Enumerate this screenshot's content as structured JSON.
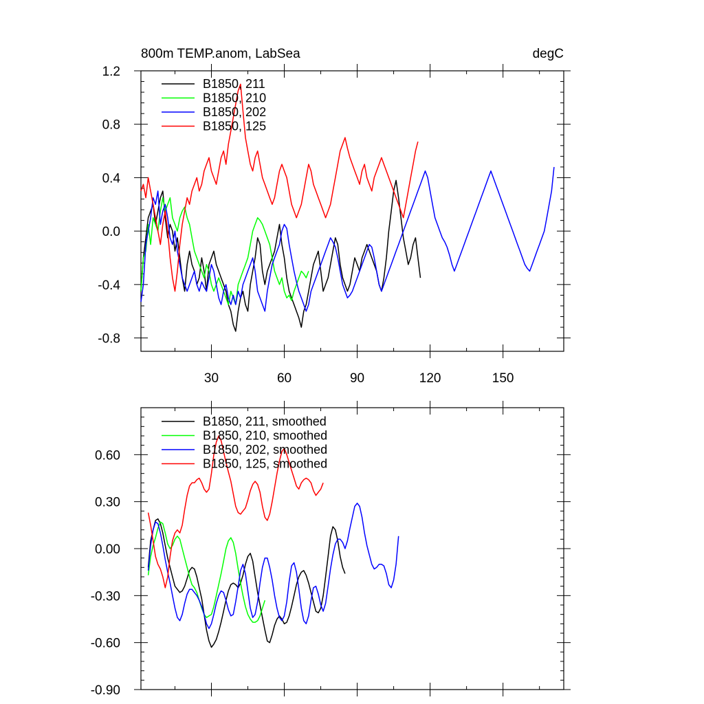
{
  "chart_data": [
    {
      "type": "line",
      "title": "800m TEMP.anom, LabSea",
      "units": "degC",
      "xlim": [
        1,
        175
      ],
      "ylim": [
        -0.9,
        1.2
      ],
      "xticks": [
        30,
        60,
        90,
        120,
        150
      ],
      "xtick_labels": [
        "30",
        "60",
        "90",
        "120",
        "150"
      ],
      "yticks": [
        -0.8,
        -0.4,
        0.0,
        0.4,
        0.8,
        1.2
      ],
      "ytick_labels": [
        "-0.8",
        "-0.4",
        "0.0",
        "0.4",
        "0.8",
        "1.2"
      ],
      "series": [
        {
          "name": "B1850, 211",
          "color": "#000000",
          "x_start": 1,
          "values": [
            -0.45,
            -0.2,
            -0.05,
            0.1,
            0.15,
            0.2,
            0.05,
            0.15,
            0.25,
            0.3,
            0.1,
            -0.05,
            0.05,
            0.0,
            -0.15,
            -0.05,
            -0.2,
            -0.35,
            -0.45,
            -0.25,
            -0.15,
            -0.25,
            -0.3,
            -0.4,
            -0.35,
            -0.2,
            -0.3,
            -0.45,
            -0.25,
            -0.2,
            -0.15,
            -0.25,
            -0.3,
            -0.35,
            -0.4,
            -0.45,
            -0.55,
            -0.6,
            -0.7,
            -0.75,
            -0.6,
            -0.5,
            -0.45,
            -0.55,
            -0.6,
            -0.4,
            -0.3,
            -0.2,
            -0.05,
            -0.1,
            -0.3,
            -0.4,
            -0.3,
            -0.25,
            -0.2,
            -0.15,
            -0.05,
            0.05,
            -0.1,
            -0.2,
            -0.35,
            -0.45,
            -0.5,
            -0.55,
            -0.6,
            -0.65,
            -0.72,
            -0.6,
            -0.55,
            -0.45,
            -0.35,
            -0.25,
            -0.2,
            -0.15,
            -0.3,
            -0.45,
            -0.4,
            -0.35,
            -0.25,
            -0.15,
            -0.05,
            -0.1,
            -0.25,
            -0.35,
            -0.4,
            -0.45,
            -0.4,
            -0.3,
            -0.2,
            -0.25,
            -0.3,
            -0.2,
            -0.15,
            -0.1,
            -0.15,
            -0.2,
            -0.25,
            -0.3,
            -0.4,
            -0.45,
            -0.35,
            -0.2,
            0.0,
            0.15,
            0.3,
            0.38,
            0.25,
            0.1,
            -0.05,
            -0.15,
            -0.25,
            -0.2,
            -0.1,
            -0.05,
            -0.2,
            -0.35
          ]
        },
        {
          "name": "B1850, 210",
          "color": "#00ff00",
          "x_start": 1,
          "values": [
            -0.45,
            -0.2,
            -0.15,
            0.05,
            -0.1,
            0.1,
            0.05,
            0.0,
            0.15,
            0.25,
            0.15,
            0.2,
            0.25,
            0.1,
            0.05,
            0.0,
            0.1,
            0.15,
            0.18,
            0.1,
            0.05,
            -0.05,
            -0.15,
            -0.2,
            -0.25,
            -0.3,
            -0.35,
            -0.25,
            -0.3,
            -0.4,
            -0.45,
            -0.4,
            -0.35,
            -0.4,
            -0.45,
            -0.5,
            -0.55,
            -0.45,
            -0.5,
            -0.55,
            -0.4,
            -0.35,
            -0.3,
            -0.25,
            -0.2,
            -0.1,
            0.0,
            0.05,
            0.1,
            0.08,
            0.05,
            0.0,
            -0.05,
            -0.1,
            -0.2,
            -0.3,
            -0.35,
            -0.4,
            -0.35,
            -0.45,
            -0.5,
            -0.48,
            -0.52,
            -0.45,
            -0.4,
            -0.35,
            -0.3,
            -0.32,
            -0.35,
            -0.3
          ]
        },
        {
          "name": "B1850, 202",
          "color": "#0000ff",
          "x_start": 1,
          "values": [
            -0.53,
            -0.4,
            -0.1,
            0.0,
            0.1,
            0.25,
            0.2,
            0.3,
            0.05,
            0.15,
            0.2,
            0.1,
            -0.05,
            -0.1,
            0.0,
            -0.15,
            -0.25,
            -0.35,
            -0.4,
            -0.45,
            -0.4,
            -0.35,
            -0.3,
            -0.4,
            -0.45,
            -0.38,
            -0.42,
            -0.45,
            -0.35,
            -0.25,
            -0.3,
            -0.4,
            -0.5,
            -0.55,
            -0.45,
            -0.4,
            -0.5,
            -0.55,
            -0.48,
            -0.55,
            -0.45,
            -0.5,
            -0.4,
            -0.35,
            -0.3,
            -0.25,
            -0.2,
            -0.3,
            -0.45,
            -0.5,
            -0.55,
            -0.6,
            -0.45,
            -0.35,
            -0.25,
            -0.2,
            -0.15,
            -0.1,
            0.0,
            0.05,
            0.02,
            -0.1,
            -0.2,
            -0.3,
            -0.38,
            -0.45,
            -0.5,
            -0.55,
            -0.6,
            -0.55,
            -0.45,
            -0.4,
            -0.35,
            -0.3,
            -0.25,
            -0.2,
            -0.15,
            -0.1,
            -0.05,
            -0.08,
            -0.12,
            -0.2,
            -0.3,
            -0.4,
            -0.45,
            -0.5,
            -0.48,
            -0.45,
            -0.4,
            -0.35,
            -0.3,
            -0.25,
            -0.2,
            -0.15,
            -0.1,
            -0.12,
            -0.2,
            -0.3,
            -0.4,
            -0.45,
            -0.4,
            -0.35,
            -0.3,
            -0.25,
            -0.2,
            -0.15,
            -0.1,
            -0.05,
            0.0,
            0.05,
            0.1,
            0.15,
            0.2,
            0.25,
            0.3,
            0.35,
            0.4,
            0.45,
            0.4,
            0.3,
            0.2,
            0.1,
            0.05,
            0.0,
            -0.05,
            -0.08,
            -0.12,
            -0.18,
            -0.25,
            -0.3,
            -0.25,
            -0.2,
            -0.15,
            -0.1,
            -0.05,
            0.0,
            0.05,
            0.1,
            0.15,
            0.2,
            0.25,
            0.3,
            0.35,
            0.4,
            0.45,
            0.4,
            0.35,
            0.3,
            0.25,
            0.2,
            0.15,
            0.1,
            0.05,
            0.0,
            -0.05,
            -0.1,
            -0.15,
            -0.2,
            -0.25,
            -0.28,
            -0.3,
            -0.25,
            -0.2,
            -0.15,
            -0.1,
            -0.05,
            0.0,
            0.1,
            0.2,
            0.3,
            0.48
          ]
        },
        {
          "name": "B1850, 125",
          "color": "#ff0000",
          "x_start": 1,
          "values": [
            0.3,
            0.35,
            0.25,
            0.4,
            0.3,
            0.2,
            0.1,
            0.0,
            -0.1,
            0.05,
            0.15,
            0.0,
            -0.2,
            -0.35,
            -0.45,
            -0.3,
            -0.1,
            0.05,
            0.15,
            0.25,
            0.2,
            0.3,
            0.35,
            0.4,
            0.3,
            0.35,
            0.45,
            0.5,
            0.55,
            0.45,
            0.4,
            0.35,
            0.45,
            0.55,
            0.6,
            0.5,
            0.65,
            0.75,
            0.85,
            0.95,
            1.05,
            1.1,
            0.9,
            0.7,
            0.6,
            0.5,
            0.45,
            0.55,
            0.6,
            0.5,
            0.4,
            0.35,
            0.3,
            0.25,
            0.2,
            0.25,
            0.35,
            0.45,
            0.5,
            0.45,
            0.4,
            0.3,
            0.2,
            0.15,
            0.1,
            0.15,
            0.2,
            0.3,
            0.4,
            0.5,
            0.45,
            0.35,
            0.3,
            0.25,
            0.2,
            0.15,
            0.1,
            0.15,
            0.2,
            0.3,
            0.4,
            0.5,
            0.6,
            0.65,
            0.7,
            0.62,
            0.55,
            0.5,
            0.45,
            0.4,
            0.35,
            0.45,
            0.5,
            0.4,
            0.35,
            0.3,
            0.4,
            0.45,
            0.5,
            0.55,
            0.5,
            0.45,
            0.4,
            0.35,
            0.3,
            0.25,
            0.2,
            0.15,
            0.1,
            0.2,
            0.3,
            0.4,
            0.5,
            0.6,
            0.67
          ]
        }
      ],
      "legend": [
        "B1850, 211",
        "B1850, 210",
        "B1850, 202",
        "B1850, 125"
      ],
      "legend_position": "top-left"
    },
    {
      "type": "line",
      "title": "",
      "xlim": [
        1,
        175
      ],
      "ylim": [
        -0.9,
        0.9
      ],
      "xticks": [
        30,
        60,
        90,
        120,
        150
      ],
      "xtick_labels": [],
      "yticks": [
        -0.9,
        -0.6,
        -0.3,
        0.0,
        0.3,
        0.6
      ],
      "ytick_labels": [
        "-0.90",
        "-0.60",
        "-0.30",
        "0.00",
        "0.30",
        "0.60"
      ],
      "series": [
        {
          "name": "B1850, 211, smoothed",
          "color": "#000000",
          "x_start": 4,
          "values": [
            -0.12,
            0.05,
            0.12,
            0.18,
            0.19,
            0.16,
            0.1,
            0.02,
            -0.06,
            -0.12,
            -0.18,
            -0.24,
            -0.26,
            -0.28,
            -0.27,
            -0.24,
            -0.19,
            -0.14,
            -0.12,
            -0.13,
            -0.18,
            -0.25,
            -0.32,
            -0.42,
            -0.52,
            -0.59,
            -0.63,
            -0.61,
            -0.58,
            -0.53,
            -0.47,
            -0.4,
            -0.33,
            -0.27,
            -0.23,
            -0.22,
            -0.23,
            -0.25,
            -0.22,
            -0.17,
            -0.1,
            -0.05,
            -0.03,
            -0.08,
            -0.18,
            -0.28,
            -0.36,
            -0.44,
            -0.52,
            -0.59,
            -0.6,
            -0.55,
            -0.49,
            -0.45,
            -0.43,
            -0.45,
            -0.48,
            -0.47,
            -0.43,
            -0.37,
            -0.3,
            -0.23,
            -0.18,
            -0.15,
            -0.14,
            -0.17,
            -0.22,
            -0.28,
            -0.34,
            -0.4,
            -0.41,
            -0.38,
            -0.3,
            -0.18,
            -0.05,
            0.08,
            0.14,
            0.12,
            0.05,
            -0.05,
            -0.12,
            -0.16
          ]
        },
        {
          "name": "B1850, 210, smoothed",
          "color": "#00ff00",
          "x_start": 4,
          "values": [
            -0.17,
            -0.05,
            0.02,
            0.07,
            0.13,
            0.17,
            0.16,
            0.1,
            0.03,
            0.0,
            0.02,
            0.06,
            0.08,
            0.06,
            0.0,
            -0.06,
            -0.12,
            -0.18,
            -0.23,
            -0.25,
            -0.28,
            -0.33,
            -0.38,
            -0.42,
            -0.44,
            -0.43,
            -0.42,
            -0.37,
            -0.3,
            -0.23,
            -0.16,
            -0.08,
            0.0,
            0.05,
            0.07,
            0.04,
            -0.03,
            -0.13,
            -0.22,
            -0.3,
            -0.37,
            -0.42,
            -0.45,
            -0.47,
            -0.47,
            -0.46,
            -0.43,
            -0.38,
            -0.33
          ]
        },
        {
          "name": "B1850, 202, smoothed",
          "color": "#0000ff",
          "x_start": 4,
          "values": [
            -0.14,
            0.02,
            0.12,
            0.17,
            0.16,
            0.1,
            0.02,
            -0.07,
            -0.15,
            -0.22,
            -0.3,
            -0.38,
            -0.44,
            -0.46,
            -0.42,
            -0.35,
            -0.29,
            -0.26,
            -0.26,
            -0.28,
            -0.3,
            -0.33,
            -0.37,
            -0.42,
            -0.48,
            -0.51,
            -0.48,
            -0.42,
            -0.35,
            -0.3,
            -0.27,
            -0.28,
            -0.33,
            -0.39,
            -0.43,
            -0.42,
            -0.34,
            -0.24,
            -0.14,
            -0.1,
            -0.16,
            -0.27,
            -0.38,
            -0.44,
            -0.42,
            -0.34,
            -0.22,
            -0.12,
            -0.06,
            -0.06,
            -0.12,
            -0.2,
            -0.3,
            -0.38,
            -0.44,
            -0.46,
            -0.43,
            -0.34,
            -0.21,
            -0.11,
            -0.09,
            -0.15,
            -0.26,
            -0.38,
            -0.46,
            -0.48,
            -0.43,
            -0.33,
            -0.25,
            -0.24,
            -0.29,
            -0.36,
            -0.4,
            -0.35,
            -0.24,
            -0.13,
            -0.04,
            0.03,
            0.06,
            0.06,
            0.04,
            0.0,
            0.05,
            0.13,
            0.2,
            0.27,
            0.29,
            0.27,
            0.2,
            0.1,
            0.02,
            -0.04,
            -0.1,
            -0.13,
            -0.12,
            -0.1,
            -0.1,
            -0.11,
            -0.16,
            -0.23,
            -0.25,
            -0.2,
            -0.1,
            0.08
          ]
        },
        {
          "name": "B1850, 125, smoothed",
          "color": "#ff0000",
          "x_start": 4,
          "values": [
            0.23,
            0.15,
            0.05,
            -0.05,
            -0.1,
            -0.13,
            -0.18,
            -0.25,
            -0.18,
            -0.05,
            0.05,
            0.1,
            0.12,
            0.1,
            0.15,
            0.25,
            0.34,
            0.4,
            0.42,
            0.42,
            0.44,
            0.45,
            0.42,
            0.38,
            0.36,
            0.38,
            0.48,
            0.6,
            0.68,
            0.72,
            0.69,
            0.62,
            0.55,
            0.49,
            0.43,
            0.35,
            0.27,
            0.23,
            0.22,
            0.24,
            0.26,
            0.31,
            0.37,
            0.41,
            0.43,
            0.41,
            0.36,
            0.27,
            0.2,
            0.18,
            0.22,
            0.3,
            0.39,
            0.48,
            0.56,
            0.62,
            0.64,
            0.6,
            0.55,
            0.5,
            0.45,
            0.4,
            0.38,
            0.42,
            0.44,
            0.45,
            0.44,
            0.42,
            0.37,
            0.34,
            0.36,
            0.38,
            0.42
          ]
        }
      ],
      "legend": [
        "B1850, 211, smoothed",
        "B1850, 210, smoothed",
        "B1850, 202, smoothed",
        "B1850, 125, smoothed"
      ],
      "legend_position": "top-left"
    }
  ]
}
